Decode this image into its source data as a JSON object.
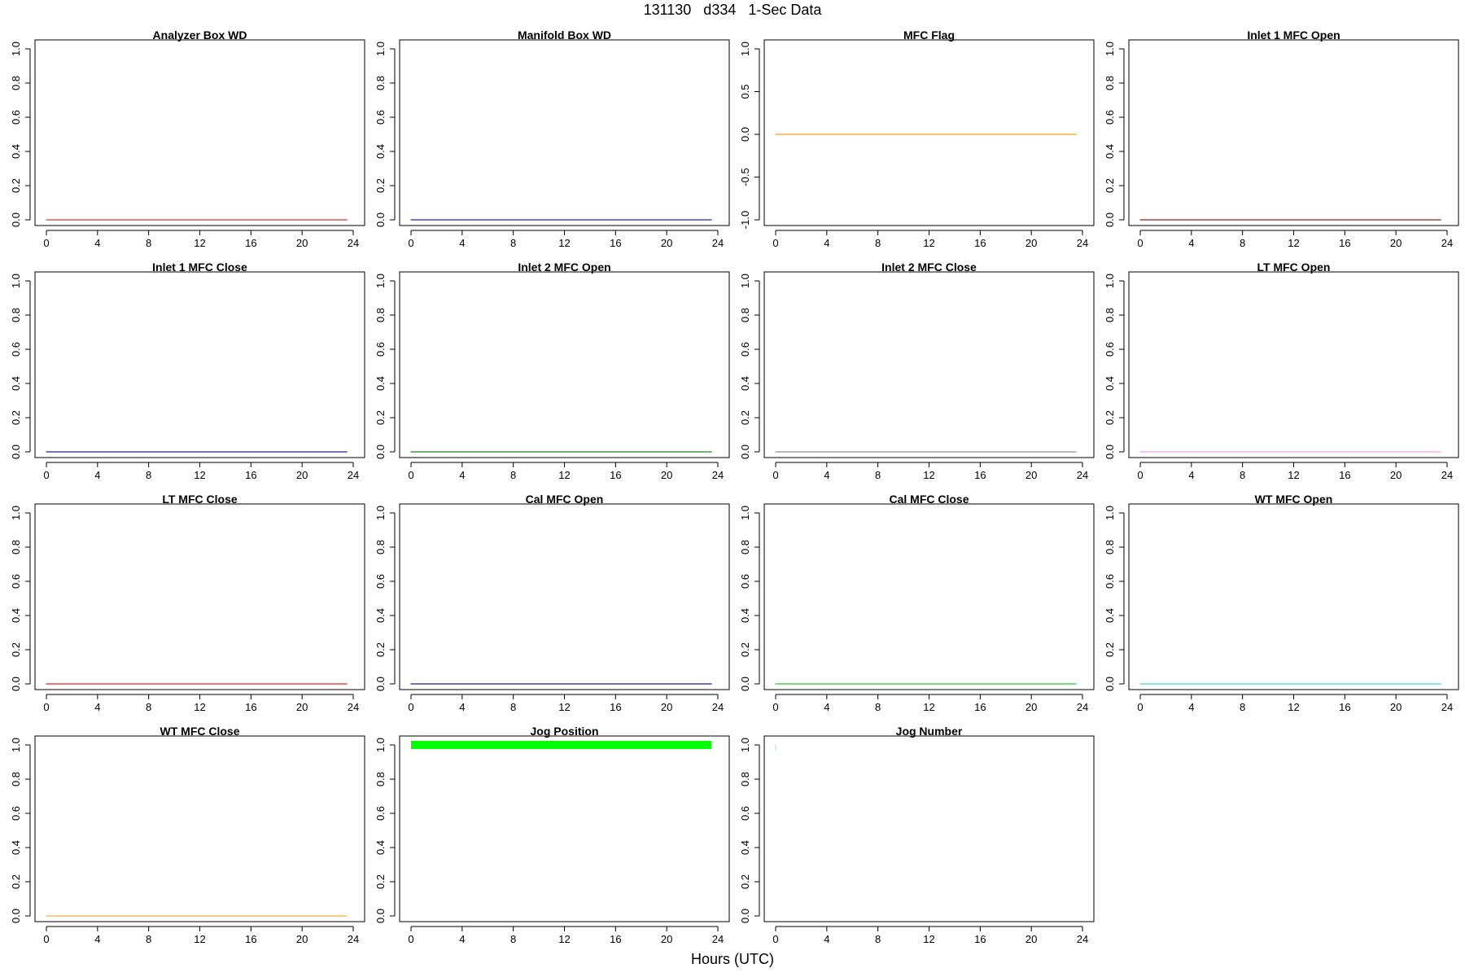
{
  "title": "131130   d334   1-Sec Data",
  "xlabel": "Hours (UTC)",
  "chart_data": [
    {
      "type": "line",
      "title": "Analyzer Box WD",
      "x": [
        0,
        23.5
      ],
      "y": [
        0,
        0
      ],
      "color": "#e0302a",
      "xlim": [
        0,
        24
      ],
      "ylim": [
        0,
        1
      ],
      "xticks": [
        "0",
        "4",
        "8",
        "12",
        "16",
        "20",
        "24"
      ],
      "yticks": [
        "0.0",
        "0.2",
        "0.4",
        "0.6",
        "0.8",
        "1.0"
      ]
    },
    {
      "type": "line",
      "title": "Manifold Box WD",
      "x": [
        0,
        23.5
      ],
      "y": [
        0,
        0
      ],
      "color": "#2020c8",
      "xlim": [
        0,
        24
      ],
      "ylim": [
        0,
        1
      ],
      "xticks": [
        "0",
        "4",
        "8",
        "12",
        "16",
        "20",
        "24"
      ],
      "yticks": [
        "0.0",
        "0.2",
        "0.4",
        "0.6",
        "0.8",
        "1.0"
      ]
    },
    {
      "type": "line",
      "title": "MFC Flag",
      "x": [
        0,
        23.5
      ],
      "y": [
        0,
        0
      ],
      "color": "#f0a020",
      "xlim": [
        0,
        24
      ],
      "ylim": [
        -1,
        1
      ],
      "xticks": [
        "0",
        "4",
        "8",
        "12",
        "16",
        "20",
        "24"
      ],
      "yticks": [
        "-1.0",
        "-0.5",
        "0.0",
        "0.5",
        "1.0"
      ]
    },
    {
      "type": "line",
      "title": "Inlet 1 MFC Open",
      "x": [
        0,
        23.5
      ],
      "y": [
        0,
        0
      ],
      "color": "#8b2020",
      "xlim": [
        0,
        24
      ],
      "ylim": [
        0,
        1
      ],
      "xticks": [
        "0",
        "4",
        "8",
        "12",
        "16",
        "20",
        "24"
      ],
      "yticks": [
        "0.0",
        "0.2",
        "0.4",
        "0.6",
        "0.8",
        "1.0"
      ]
    },
    {
      "type": "line",
      "title": "Inlet 1 MFC Close",
      "x": [
        0,
        23.5
      ],
      "y": [
        0,
        0
      ],
      "color": "#2020a0",
      "xlim": [
        0,
        24
      ],
      "ylim": [
        0,
        1
      ],
      "xticks": [
        "0",
        "4",
        "8",
        "12",
        "16",
        "20",
        "24"
      ],
      "yticks": [
        "0.0",
        "0.2",
        "0.4",
        "0.6",
        "0.8",
        "1.0"
      ]
    },
    {
      "type": "line",
      "title": "Inlet 2 MFC Open",
      "x": [
        0,
        23.5
      ],
      "y": [
        0,
        0
      ],
      "color": "#208020",
      "xlim": [
        0,
        24
      ],
      "ylim": [
        0,
        1
      ],
      "xticks": [
        "0",
        "4",
        "8",
        "12",
        "16",
        "20",
        "24"
      ],
      "yticks": [
        "0.0",
        "0.2",
        "0.4",
        "0.6",
        "0.8",
        "1.0"
      ]
    },
    {
      "type": "line",
      "title": "Inlet 2 MFC Close",
      "x": [
        0,
        23.5
      ],
      "y": [
        0,
        0
      ],
      "color": "#909090",
      "xlim": [
        0,
        24
      ],
      "ylim": [
        0,
        1
      ],
      "xticks": [
        "0",
        "4",
        "8",
        "12",
        "16",
        "20",
        "24"
      ],
      "yticks": [
        "0.0",
        "0.2",
        "0.4",
        "0.6",
        "0.8",
        "1.0"
      ]
    },
    {
      "type": "line",
      "title": "LT MFC Open",
      "x": [
        0,
        23.5
      ],
      "y": [
        0,
        0
      ],
      "color": "#f0a0f0",
      "xlim": [
        0,
        24
      ],
      "ylim": [
        0,
        1
      ],
      "xticks": [
        "0",
        "4",
        "8",
        "12",
        "16",
        "20",
        "24"
      ],
      "yticks": [
        "0.0",
        "0.2",
        "0.4",
        "0.6",
        "0.8",
        "1.0"
      ]
    },
    {
      "type": "line",
      "title": "LT MFC Close",
      "x": [
        0,
        23.5
      ],
      "y": [
        0,
        0
      ],
      "color": "#e02020",
      "xlim": [
        0,
        24
      ],
      "ylim": [
        0,
        1
      ],
      "xticks": [
        "0",
        "4",
        "8",
        "12",
        "16",
        "20",
        "24"
      ],
      "yticks": [
        "0.0",
        "0.2",
        "0.4",
        "0.6",
        "0.8",
        "1.0"
      ]
    },
    {
      "type": "line",
      "title": "Cal MFC Open",
      "x": [
        0,
        23.5
      ],
      "y": [
        0,
        0
      ],
      "color": "#1818b0",
      "xlim": [
        0,
        24
      ],
      "ylim": [
        0,
        1
      ],
      "xticks": [
        "0",
        "4",
        "8",
        "12",
        "16",
        "20",
        "24"
      ],
      "yticks": [
        "0.0",
        "0.2",
        "0.4",
        "0.6",
        "0.8",
        "1.0"
      ]
    },
    {
      "type": "line",
      "title": "Cal MFC Close",
      "x": [
        0,
        23.5
      ],
      "y": [
        0,
        0
      ],
      "color": "#30c030",
      "xlim": [
        0,
        24
      ],
      "ylim": [
        0,
        1
      ],
      "xticks": [
        "0",
        "4",
        "8",
        "12",
        "16",
        "20",
        "24"
      ],
      "yticks": [
        "0.0",
        "0.2",
        "0.4",
        "0.6",
        "0.8",
        "1.0"
      ]
    },
    {
      "type": "line",
      "title": "WT MFC Open",
      "x": [
        0,
        23.5
      ],
      "y": [
        0,
        0
      ],
      "color": "#40d0e0",
      "xlim": [
        0,
        24
      ],
      "ylim": [
        0,
        1
      ],
      "xticks": [
        "0",
        "4",
        "8",
        "12",
        "16",
        "20",
        "24"
      ],
      "yticks": [
        "0.0",
        "0.2",
        "0.4",
        "0.6",
        "0.8",
        "1.0"
      ]
    },
    {
      "type": "line",
      "title": "WT MFC Close",
      "x": [
        0,
        23.5
      ],
      "y": [
        0,
        0
      ],
      "color": "#f0b040",
      "xlim": [
        0,
        24
      ],
      "ylim": [
        0,
        1
      ],
      "xticks": [
        "0",
        "4",
        "8",
        "12",
        "16",
        "20",
        "24"
      ],
      "yticks": [
        "0.0",
        "0.2",
        "0.4",
        "0.6",
        "0.8",
        "1.0"
      ]
    },
    {
      "type": "line",
      "title": "Jog Position",
      "x": [
        0,
        23.5
      ],
      "y": [
        1,
        1
      ],
      "color": "#00ff00",
      "thick": true,
      "xlim": [
        0,
        24
      ],
      "ylim": [
        0,
        1
      ],
      "xticks": [
        "0",
        "4",
        "8",
        "12",
        "16",
        "20",
        "24"
      ],
      "yticks": [
        "0.0",
        "0.2",
        "0.4",
        "0.6",
        "0.8",
        "1.0"
      ]
    },
    {
      "type": "line",
      "title": "Jog Number",
      "x": [
        0,
        0
      ],
      "y": [
        0.97,
        1
      ],
      "color": "#a0f0f0",
      "xlim": [
        0,
        24
      ],
      "ylim": [
        0,
        1
      ],
      "xticks": [
        "0",
        "4",
        "8",
        "12",
        "16",
        "20",
        "24"
      ],
      "yticks": [
        "0.0",
        "0.2",
        "0.4",
        "0.6",
        "0.8",
        "1.0"
      ]
    }
  ]
}
